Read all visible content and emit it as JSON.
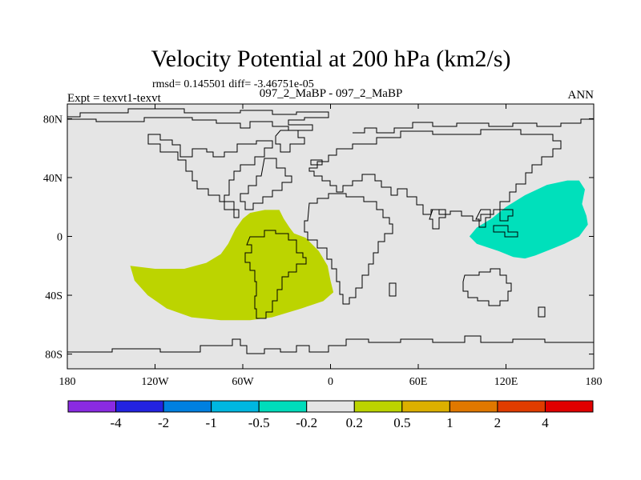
{
  "chart_data": {
    "type": "contour_map",
    "title": "Velocity Potential at 200 hPa (km2/s)",
    "stats_text": "rmsd= 0.145501 diff= -3.46751e-05",
    "left_label": "Expt = texvt1-texvt",
    "center_label": "097_2_MaBP - 097_2_MaBP",
    "right_label": "ANN",
    "xaxis": {
      "range": [
        -180,
        180
      ],
      "ticks": [
        -180,
        -120,
        -60,
        0,
        60,
        120,
        180
      ],
      "tick_labels": [
        "180",
        "120W",
        "60W",
        "0",
        "60E",
        "120E",
        "180"
      ]
    },
    "yaxis": {
      "range": [
        -90,
        90
      ],
      "ticks": [
        80,
        40,
        0,
        -40,
        -80
      ],
      "tick_labels": [
        "80N",
        "40N",
        "0",
        "40S",
        "80S"
      ]
    },
    "regions": [
      {
        "name": "positive anomaly over South America / South Atlantic",
        "level": "0.2 to 0.5",
        "color": "#bcd400",
        "outline": [
          [
            -137,
            -20
          ],
          [
            -120,
            -22
          ],
          [
            -100,
            -22
          ],
          [
            -85,
            -18
          ],
          [
            -75,
            -12
          ],
          [
            -70,
            -5
          ],
          [
            -65,
            5
          ],
          [
            -60,
            12
          ],
          [
            -55,
            16
          ],
          [
            -45,
            18
          ],
          [
            -35,
            18
          ],
          [
            -32,
            12
          ],
          [
            -28,
            6
          ],
          [
            -25,
            2
          ],
          [
            -17,
            -1
          ],
          [
            -8,
            -10
          ],
          [
            -2,
            -20
          ],
          [
            0,
            -30
          ],
          [
            2,
            -38
          ],
          [
            -5,
            -44
          ],
          [
            -20,
            -49
          ],
          [
            -40,
            -55
          ],
          [
            -55,
            -57
          ],
          [
            -75,
            -57
          ],
          [
            -95,
            -55
          ],
          [
            -112,
            -49
          ],
          [
            -125,
            -40
          ],
          [
            -134,
            -30
          ]
        ]
      },
      {
        "name": "negative anomaly over West Pacific / Indonesia",
        "level": "-0.5 to -0.2",
        "color": "#00e0bb",
        "outline": [
          [
            95,
            0
          ],
          [
            100,
            6
          ],
          [
            110,
            12
          ],
          [
            120,
            20
          ],
          [
            133,
            28
          ],
          [
            148,
            35
          ],
          [
            162,
            38
          ],
          [
            170,
            38
          ],
          [
            174,
            32
          ],
          [
            172,
            22
          ],
          [
            175,
            14
          ],
          [
            176,
            8
          ],
          [
            170,
            0
          ],
          [
            160,
            -5
          ],
          [
            150,
            -9
          ],
          [
            140,
            -13
          ],
          [
            133,
            -15
          ],
          [
            125,
            -14
          ],
          [
            115,
            -10
          ],
          [
            100,
            -5
          ]
        ]
      }
    ],
    "colorbar": {
      "colors": [
        "#8a2be2",
        "#2323e0",
        "#0080e0",
        "#00b7e0",
        "#00dcbb",
        "#e5e5e5",
        "#bcd400",
        "#dcb000",
        "#e07800",
        "#e03c00",
        "#e00000"
      ],
      "labels": [
        "-4",
        "-2",
        "-1",
        "-0.5",
        "-0.2",
        "0.2",
        "0.5",
        "1",
        "2",
        "4"
      ]
    },
    "colors": {
      "background": "#e5e5e5",
      "coastline": "#000000"
    }
  }
}
